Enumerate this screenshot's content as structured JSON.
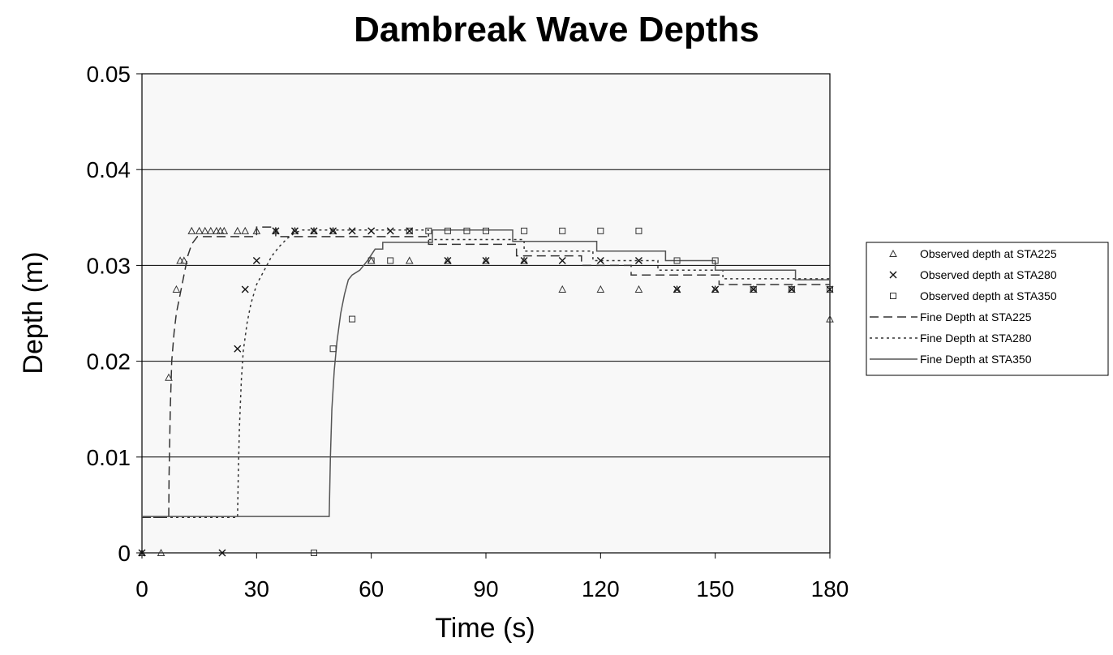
{
  "chart_data": {
    "type": "scatter",
    "title": "Dambreak Wave Depths",
    "xlabel": "Time (s)",
    "ylabel": "Depth (m)",
    "xlim": [
      0,
      180
    ],
    "ylim": [
      0,
      0.05
    ],
    "x_ticks": [
      "0",
      "30",
      "60",
      "90",
      "120",
      "150",
      "180"
    ],
    "y_ticks": [
      "0",
      "0.01",
      "0.02",
      "0.03",
      "0.04",
      "0.05"
    ],
    "grid": "horizontal",
    "legend_position": "right",
    "observed": [
      {
        "name": "Observed depth at STA225",
        "marker": "triangle",
        "points": [
          [
            0,
            0
          ],
          [
            5,
            0
          ],
          [
            7,
            0.0183
          ],
          [
            9,
            0.0275
          ],
          [
            10,
            0.0305
          ],
          [
            11,
            0.0305
          ],
          [
            13,
            0.0336
          ],
          [
            15,
            0.0336
          ],
          [
            16.5,
            0.0336
          ],
          [
            18,
            0.0336
          ],
          [
            19.5,
            0.0336
          ],
          [
            20.5,
            0.0336
          ],
          [
            21.5,
            0.0336
          ],
          [
            25,
            0.0336
          ],
          [
            27,
            0.0336
          ],
          [
            30,
            0.0336
          ],
          [
            35,
            0.0336
          ],
          [
            40,
            0.0336
          ],
          [
            45,
            0.0336
          ],
          [
            50,
            0.0336
          ],
          [
            60,
            0.0305
          ],
          [
            70,
            0.0305
          ],
          [
            80,
            0.0305
          ],
          [
            90,
            0.0305
          ],
          [
            100,
            0.0305
          ],
          [
            110,
            0.0275
          ],
          [
            120,
            0.0275
          ],
          [
            130,
            0.0275
          ],
          [
            140,
            0.0275
          ],
          [
            150,
            0.0275
          ],
          [
            160,
            0.0275
          ],
          [
            170,
            0.0275
          ],
          [
            180,
            0.0244
          ]
        ]
      },
      {
        "name": "Observed depth at STA280",
        "marker": "x",
        "points": [
          [
            0,
            0
          ],
          [
            21,
            0
          ],
          [
            25,
            0.0213
          ],
          [
            27,
            0.0275
          ],
          [
            30,
            0.0305
          ],
          [
            35,
            0.0336
          ],
          [
            40,
            0.0336
          ],
          [
            45,
            0.0336
          ],
          [
            50,
            0.0336
          ],
          [
            55,
            0.0336
          ],
          [
            60,
            0.0336
          ],
          [
            65,
            0.0336
          ],
          [
            70,
            0.0336
          ],
          [
            80,
            0.0305
          ],
          [
            90,
            0.0305
          ],
          [
            100,
            0.0305
          ],
          [
            110,
            0.0305
          ],
          [
            120,
            0.0305
          ],
          [
            130,
            0.0305
          ],
          [
            140,
            0.0275
          ],
          [
            150,
            0.0275
          ],
          [
            160,
            0.0275
          ],
          [
            170,
            0.0275
          ],
          [
            180,
            0.0275
          ]
        ]
      },
      {
        "name": "Observed depth at STA350",
        "marker": "square",
        "points": [
          [
            45,
            0
          ],
          [
            50,
            0.0213
          ],
          [
            55,
            0.0244
          ],
          [
            60,
            0.0305
          ],
          [
            65,
            0.0305
          ],
          [
            70,
            0.0336
          ],
          [
            75,
            0.0336
          ],
          [
            80,
            0.0336
          ],
          [
            85,
            0.0336
          ],
          [
            90,
            0.0336
          ],
          [
            100,
            0.0336
          ],
          [
            110,
            0.0336
          ],
          [
            120,
            0.0336
          ],
          [
            130,
            0.0336
          ],
          [
            140,
            0.0305
          ],
          [
            150,
            0.0305
          ],
          [
            160,
            0.0275
          ],
          [
            170,
            0.0275
          ],
          [
            180,
            0.0275
          ]
        ]
      }
    ],
    "lines": [
      {
        "name": "Fine Depth at STA225",
        "style": "dashed",
        "points": [
          [
            0,
            0.0037
          ],
          [
            7,
            0.0037
          ],
          [
            7.1,
            0.008
          ],
          [
            7.4,
            0.015
          ],
          [
            7.8,
            0.02
          ],
          [
            8.4,
            0.023
          ],
          [
            9,
            0.025
          ],
          [
            10,
            0.027
          ],
          [
            11,
            0.029
          ],
          [
            12,
            0.031
          ],
          [
            13,
            0.0322
          ],
          [
            14.5,
            0.033
          ],
          [
            30,
            0.033
          ],
          [
            30,
            0.034
          ],
          [
            35,
            0.034
          ],
          [
            35,
            0.033
          ],
          [
            75,
            0.033
          ],
          [
            75,
            0.0322
          ],
          [
            98,
            0.0322
          ],
          [
            98,
            0.031
          ],
          [
            115,
            0.031
          ],
          [
            115,
            0.03
          ],
          [
            128,
            0.03
          ],
          [
            128,
            0.029
          ],
          [
            151,
            0.029
          ],
          [
            151,
            0.028
          ],
          [
            180,
            0.028
          ]
        ]
      },
      {
        "name": "Fine Depth at STA280",
        "style": "dotted",
        "points": [
          [
            0,
            0.0037
          ],
          [
            25,
            0.0037
          ],
          [
            25.2,
            0.008
          ],
          [
            25.5,
            0.013
          ],
          [
            26,
            0.018
          ],
          [
            26.5,
            0.021
          ],
          [
            27.5,
            0.024
          ],
          [
            28.5,
            0.026
          ],
          [
            30,
            0.028
          ],
          [
            32,
            0.0295
          ],
          [
            34,
            0.031
          ],
          [
            36,
            0.032
          ],
          [
            38,
            0.0328
          ],
          [
            40,
            0.0334
          ],
          [
            42,
            0.0337
          ],
          [
            75,
            0.0337
          ],
          [
            75,
            0.0327
          ],
          [
            100,
            0.0327
          ],
          [
            100,
            0.0315
          ],
          [
            118,
            0.0315
          ],
          [
            118,
            0.0305
          ],
          [
            135,
            0.0305
          ],
          [
            135,
            0.0295
          ],
          [
            152,
            0.0295
          ],
          [
            152,
            0.0286
          ],
          [
            180,
            0.0286
          ]
        ]
      },
      {
        "name": "Fine Depth at STA350",
        "style": "solid",
        "points": [
          [
            0,
            0.0038
          ],
          [
            49,
            0.0038
          ],
          [
            49.3,
            0.01
          ],
          [
            49.7,
            0.015
          ],
          [
            50.3,
            0.019
          ],
          [
            51,
            0.022
          ],
          [
            52,
            0.025
          ],
          [
            53,
            0.027
          ],
          [
            54,
            0.0285
          ],
          [
            55,
            0.029
          ],
          [
            57,
            0.0295
          ],
          [
            59,
            0.0305
          ],
          [
            61,
            0.0317
          ],
          [
            63,
            0.0317
          ],
          [
            63,
            0.0324
          ],
          [
            76,
            0.0324
          ],
          [
            76,
            0.0337
          ],
          [
            97,
            0.0337
          ],
          [
            97,
            0.0325
          ],
          [
            119,
            0.0325
          ],
          [
            119,
            0.0315
          ],
          [
            137,
            0.0315
          ],
          [
            137,
            0.0305
          ],
          [
            150,
            0.0305
          ],
          [
            150,
            0.0295
          ],
          [
            171,
            0.0295
          ],
          [
            171,
            0.0285
          ],
          [
            180,
            0.0285
          ]
        ]
      }
    ]
  }
}
